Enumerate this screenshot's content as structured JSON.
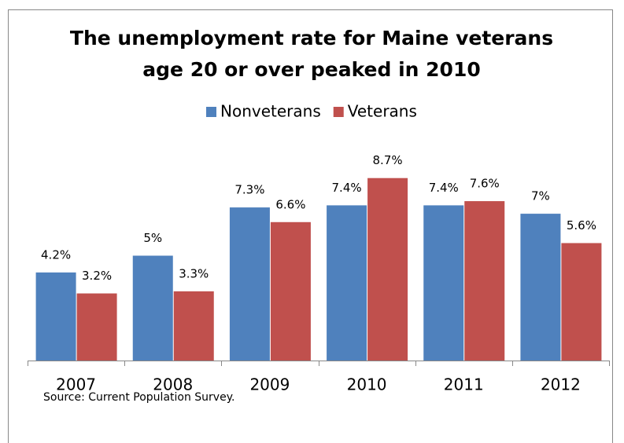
{
  "chart_data": {
    "type": "bar",
    "title": [
      "The unemployment rate for Maine veterans",
      "age 20 or over peaked in 2010"
    ],
    "categories": [
      "2007",
      "2008",
      "2009",
      "2010",
      "2011",
      "2012"
    ],
    "series": [
      {
        "name": "Nonveterans",
        "color": "#4f81bd",
        "values": [
          4.2,
          5,
          7.3,
          7.4,
          7.4,
          7
        ],
        "value_labels": [
          "4.2%",
          "5%",
          "7.3%",
          "7.4%",
          "7.4%",
          "7%"
        ]
      },
      {
        "name": "Veterans",
        "color": "#c0504d",
        "values": [
          3.2,
          3.3,
          6.6,
          8.7,
          7.6,
          5.6
        ],
        "value_labels": [
          "3.2%",
          "3.3%",
          "6.6%",
          "8.7%",
          "7.6%",
          "5.6%"
        ]
      }
    ],
    "ylim": [
      0,
      10
    ],
    "legend": "top",
    "source": "Source: Current Population Survey."
  }
}
